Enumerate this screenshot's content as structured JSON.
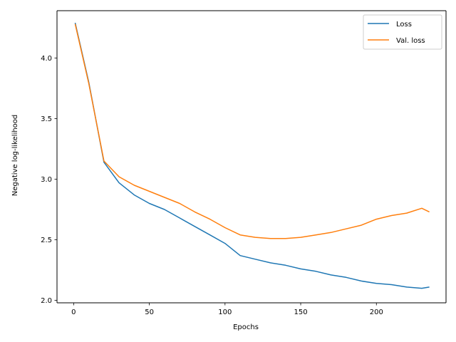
{
  "chart_data": {
    "type": "line",
    "xlabel": "Epochs",
    "ylabel": "Negative log-likelihood",
    "xlim": [
      -11,
      246
    ],
    "ylim": [
      1.98,
      4.39
    ],
    "xticks": [
      0,
      50,
      100,
      150,
      200
    ],
    "xtick_labels": [
      "0",
      "50",
      "100",
      "150",
      "200"
    ],
    "yticks": [
      2.0,
      2.5,
      3.0,
      3.5,
      4.0
    ],
    "ytick_labels": [
      "2.0",
      "2.5",
      "3.0",
      "3.5",
      "4.0"
    ],
    "grid": false,
    "legend_position": "top-right",
    "x": [
      1,
      10,
      20,
      30,
      40,
      50,
      60,
      70,
      80,
      90,
      100,
      110,
      120,
      130,
      140,
      150,
      160,
      170,
      180,
      190,
      200,
      210,
      220,
      230,
      235
    ],
    "series": [
      {
        "name": "Loss",
        "color": "#1f77b4",
        "values": [
          4.29,
          3.8,
          3.14,
          2.97,
          2.87,
          2.8,
          2.75,
          2.68,
          2.61,
          2.54,
          2.47,
          2.37,
          2.34,
          2.31,
          2.29,
          2.26,
          2.24,
          2.21,
          2.19,
          2.16,
          2.14,
          2.13,
          2.11,
          2.1,
          2.11
        ]
      },
      {
        "name": "Val. loss",
        "color": "#ff7f0e",
        "values": [
          4.28,
          3.79,
          3.15,
          3.02,
          2.95,
          2.9,
          2.85,
          2.8,
          2.73,
          2.67,
          2.6,
          2.54,
          2.52,
          2.51,
          2.51,
          2.52,
          2.54,
          2.56,
          2.59,
          2.62,
          2.67,
          2.7,
          2.72,
          2.76,
          2.73
        ]
      }
    ]
  }
}
